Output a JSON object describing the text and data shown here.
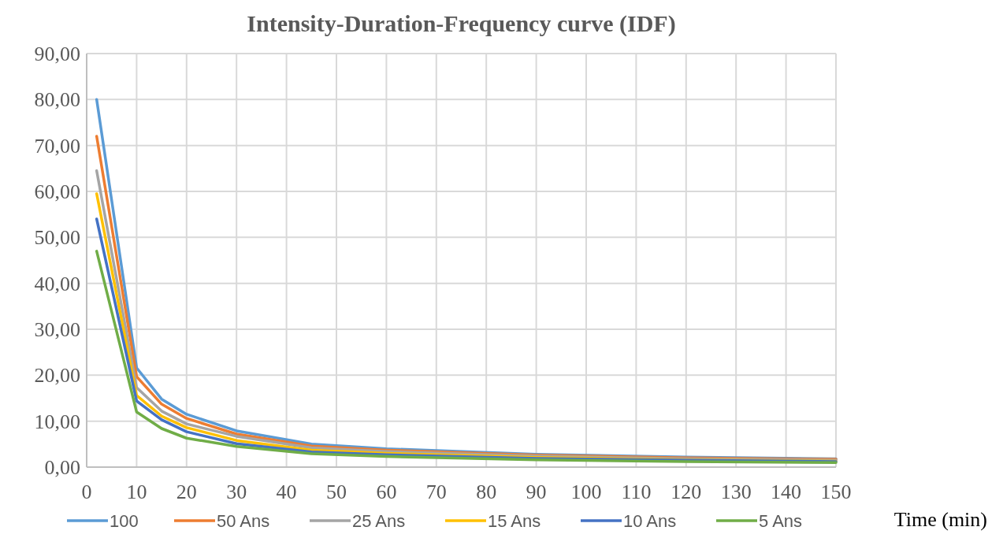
{
  "chart_data": {
    "type": "line",
    "title": "Intensity-Duration-Frequency curve (IDF)",
    "xlabel": "Time (min)",
    "x": [
      2,
      10,
      15,
      20,
      30,
      45,
      60,
      90,
      120,
      150
    ],
    "series": [
      {
        "name": "100",
        "color": "#5b9bd5",
        "values": [
          80.0,
          21.6,
          14.8,
          11.5,
          7.9,
          5.0,
          4.0,
          2.8,
          2.2,
          1.8
        ]
      },
      {
        "name": "50 Ans",
        "color": "#ed7d31",
        "values": [
          72.0,
          19.7,
          13.7,
          10.6,
          7.2,
          4.6,
          3.7,
          2.6,
          2.0,
          1.7
        ]
      },
      {
        "name": "25 Ans",
        "color": "#a5a5a5",
        "values": [
          64.5,
          17.3,
          12.2,
          9.4,
          6.7,
          4.2,
          3.4,
          2.4,
          1.8,
          1.5
        ]
      },
      {
        "name": "15 Ans",
        "color": "#ffc000",
        "values": [
          59.5,
          15.6,
          11.1,
          8.6,
          5.8,
          3.7,
          3.0,
          2.1,
          1.6,
          1.3
        ]
      },
      {
        "name": "10 Ans",
        "color": "#4472c4",
        "values": [
          54.0,
          14.4,
          10.3,
          7.7,
          5.1,
          3.3,
          2.7,
          1.9,
          1.5,
          1.2
        ]
      },
      {
        "name": "5 Ans",
        "color": "#70ad47",
        "values": [
          47.0,
          12.0,
          8.4,
          6.3,
          4.5,
          2.9,
          2.3,
          1.6,
          1.2,
          1.0
        ]
      }
    ],
    "xlim": [
      0,
      150
    ],
    "xticks": [
      0,
      10,
      20,
      30,
      40,
      50,
      60,
      70,
      80,
      90,
      100,
      110,
      120,
      130,
      140,
      150
    ],
    "ylim": [
      0,
      90
    ],
    "yticks": [
      {
        "value": 0,
        "label": "0,00"
      },
      {
        "value": 10,
        "label": "10,00"
      },
      {
        "value": 20,
        "label": "20,00"
      },
      {
        "value": 30,
        "label": "30,00"
      },
      {
        "value": 40,
        "label": "40,00"
      },
      {
        "value": 50,
        "label": "50,00"
      },
      {
        "value": 60,
        "label": "60,00"
      },
      {
        "value": 70,
        "label": "70,00"
      },
      {
        "value": 80,
        "label": "80,00"
      },
      {
        "value": 90,
        "label": "90,00"
      }
    ],
    "grid": true,
    "legend": "bottom",
    "marker": "none",
    "line_style": "solid"
  }
}
